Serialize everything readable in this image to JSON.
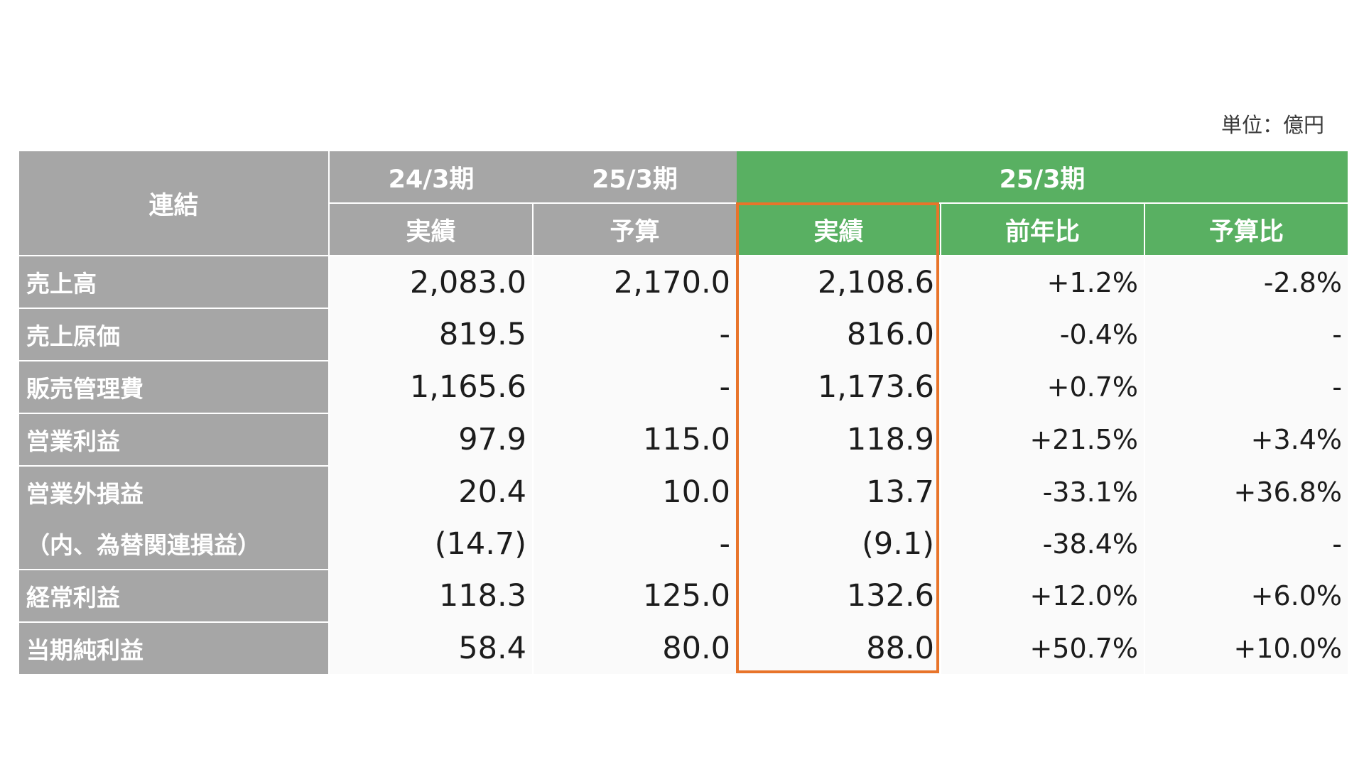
{
  "unit_label": "単位：億円",
  "table": {
    "corner_label": "連結",
    "period_headers": [
      "24/3期",
      "25/3期",
      "25/3期"
    ],
    "sub_headers": [
      "実績",
      "予算",
      "実績",
      "前年比",
      "予算比"
    ],
    "rows": [
      {
        "label": "売上高",
        "values": [
          "2,083.0",
          "2,170.0",
          "2,108.6",
          "+1.2%",
          "-2.8%"
        ]
      },
      {
        "label": "売上原価",
        "values": [
          "819.5",
          "-",
          "816.0",
          "-0.4%",
          "-"
        ]
      },
      {
        "label": "販売管理費",
        "values": [
          "1,165.6",
          "-",
          "1,173.6",
          "+0.7%",
          "-"
        ]
      },
      {
        "label": "営業利益",
        "values": [
          "97.9",
          "115.0",
          "118.9",
          "+21.5%",
          "+3.4%"
        ]
      },
      {
        "label": "営業外損益",
        "values": [
          "20.4",
          "10.0",
          "13.7",
          "-33.1%",
          "+36.8%"
        ]
      },
      {
        "label": "（内、為替関連損益）",
        "values": [
          "(14.7)",
          "-",
          "(9.1)",
          "-38.4%",
          "-"
        ]
      },
      {
        "label": "経常利益",
        "values": [
          "118.3",
          "125.0",
          "132.6",
          "+12.0%",
          "+6.0%"
        ]
      },
      {
        "label": "当期純利益",
        "values": [
          "58.4",
          "80.0",
          "88.0",
          "+50.7%",
          "+10.0%"
        ]
      }
    ]
  },
  "colors": {
    "header_grey": "#a6a6a6",
    "header_green": "#59b062",
    "highlight_frame": "#e8742a"
  }
}
